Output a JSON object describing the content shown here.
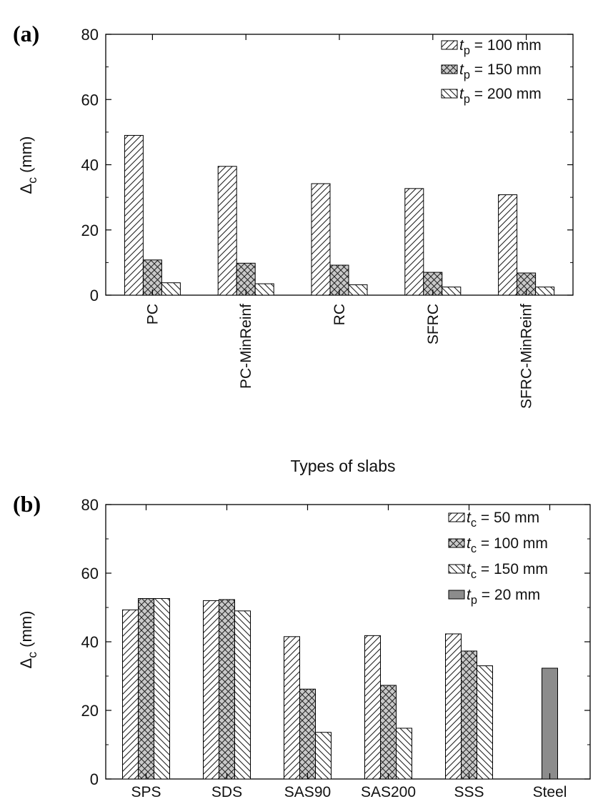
{
  "chart_data": [
    {
      "type": "bar",
      "panel_label": "(a)",
      "ylabel_symbol": "Δ",
      "ylabel_sub": "c",
      "ylabel_unit": " (mm)",
      "xlabel": "Types of slabs",
      "ylim": [
        0,
        80
      ],
      "yticks": [
        0,
        20,
        40,
        60,
        80
      ],
      "categories": [
        "PC",
        "PC-MinReinf",
        "RC",
        "SFRC",
        "SFRC-MinReinf"
      ],
      "category_label_orientation": "vertical",
      "legend_position": "top-right",
      "series": [
        {
          "name": "tp = 100 mm",
          "var": "t",
          "sub": "p",
          "rest": " = 100 mm",
          "pattern": "hatch-fwd",
          "values": [
            49,
            39.5,
            34.2,
            32.7,
            30.8
          ]
        },
        {
          "name": "tp = 150 mm",
          "var": "t",
          "sub": "p",
          "rest": " = 150 mm",
          "pattern": "crosshatch",
          "values": [
            10.8,
            9.8,
            9.2,
            7.0,
            6.8
          ]
        },
        {
          "name": "tp = 200 mm",
          "var": "t",
          "sub": "p",
          "rest": " = 200 mm",
          "pattern": "hatch-back",
          "values": [
            3.8,
            3.5,
            3.2,
            2.5,
            2.5
          ]
        }
      ]
    },
    {
      "type": "bar",
      "panel_label": "(b)",
      "ylabel_symbol": "Δ",
      "ylabel_sub": "c",
      "ylabel_unit": " (mm)",
      "xlabel": "",
      "ylim": [
        0,
        80
      ],
      "yticks": [
        0,
        20,
        40,
        60,
        80
      ],
      "categories": [
        "SPS",
        "SDS",
        "SAS90",
        "SAS200",
        "SSS",
        "Steel"
      ],
      "category_label_orientation": "horizontal",
      "legend_position": "top-right",
      "series": [
        {
          "name": "tc = 50 mm",
          "var": "t",
          "sub": "c",
          "rest": " = 50 mm",
          "pattern": "hatch-fwd",
          "values": [
            49.3,
            52.0,
            41.5,
            41.8,
            42.3,
            null
          ]
        },
        {
          "name": "tc = 100 mm",
          "var": "t",
          "sub": "c",
          "rest": " = 100 mm",
          "pattern": "crosshatch",
          "values": [
            52.6,
            52.3,
            26.2,
            27.3,
            37.3,
            null
          ]
        },
        {
          "name": "tc = 150 mm",
          "var": "t",
          "sub": "c",
          "rest": " = 150 mm",
          "pattern": "hatch-back",
          "values": [
            52.6,
            49.0,
            13.6,
            14.8,
            33.0,
            null
          ]
        },
        {
          "name": "tp = 20 mm",
          "var": "t",
          "sub": "p",
          "rest": " = 20 mm",
          "pattern": "solid-gray",
          "values": [
            null,
            null,
            null,
            null,
            null,
            32.3
          ]
        }
      ]
    }
  ]
}
